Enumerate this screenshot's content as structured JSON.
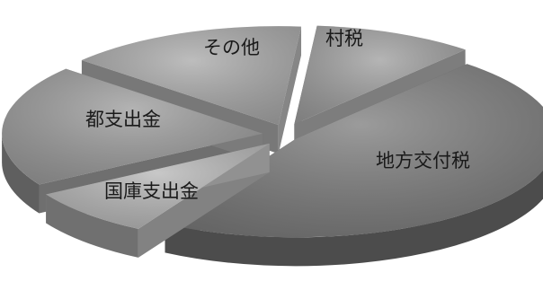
{
  "chart_data": {
    "type": "pie",
    "style": "3d-exploded",
    "categories": [
      "村税",
      "地方交付税",
      "国庫支出金",
      "都支出金",
      "その他"
    ],
    "values": [
      10,
      47,
      8,
      20,
      15
    ],
    "labels": [
      "村税",
      "地方交付税",
      "国庫支出金",
      "都支出金",
      "その他"
    ],
    "colors": [
      "#9c9c9c",
      "#7a7a7a",
      "#b5b5b5",
      "#9a9a9a",
      "#a7a7a7"
    ]
  }
}
